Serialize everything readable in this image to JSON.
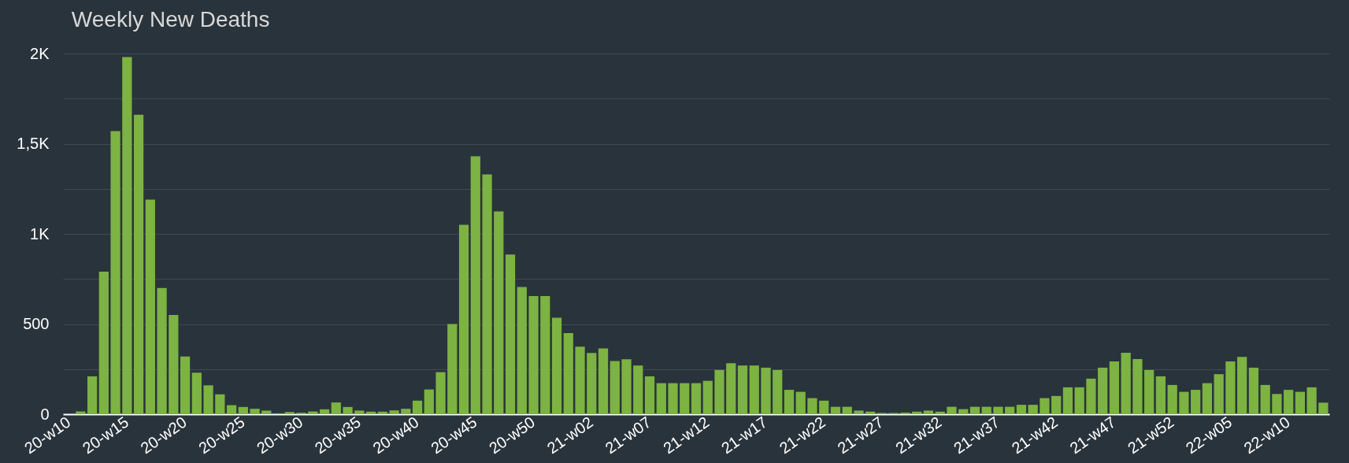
{
  "chart_data": {
    "type": "bar",
    "title": "Weekly New Deaths",
    "categories": [
      "20-w10",
      null,
      null,
      null,
      null,
      "20-w15",
      null,
      null,
      null,
      null,
      "20-w20",
      null,
      null,
      null,
      null,
      "20-w25",
      null,
      null,
      null,
      null,
      "20-w30",
      null,
      null,
      null,
      null,
      "20-w35",
      null,
      null,
      null,
      null,
      "20-w40",
      null,
      null,
      null,
      null,
      "20-w45",
      null,
      null,
      null,
      null,
      "20-w50",
      null,
      null,
      null,
      null,
      "21-w02",
      null,
      null,
      null,
      null,
      "21-w07",
      null,
      null,
      null,
      null,
      "21-w12",
      null,
      null,
      null,
      null,
      "21-w17",
      null,
      null,
      null,
      null,
      "21-w22",
      null,
      null,
      null,
      null,
      "21-w27",
      null,
      null,
      null,
      null,
      "21-w32",
      null,
      null,
      null,
      null,
      "21-w37",
      null,
      null,
      null,
      null,
      "21-w42",
      null,
      null,
      null,
      null,
      "21-w47",
      null,
      null,
      null,
      null,
      "21-w52",
      null,
      null,
      null,
      null,
      "22-w05",
      null,
      null,
      null,
      null,
      "22-w10",
      null,
      null,
      null
    ],
    "values": [
      0,
      15,
      210,
      790,
      1570,
      1980,
      1660,
      1190,
      700,
      550,
      320,
      230,
      160,
      110,
      50,
      40,
      30,
      20,
      5,
      12,
      8,
      15,
      27,
      65,
      40,
      20,
      14,
      14,
      21,
      30,
      75,
      137,
      233,
      500,
      1050,
      1430,
      1330,
      1125,
      885,
      705,
      655,
      655,
      535,
      450,
      375,
      340,
      365,
      295,
      305,
      270,
      210,
      172,
      172,
      172,
      172,
      185,
      245,
      283,
      270,
      270,
      258,
      245,
      135,
      124,
      89,
      75,
      41,
      41,
      20,
      14,
      7,
      7,
      9,
      14,
      20,
      14,
      41,
      28,
      41,
      41,
      41,
      41,
      52,
      52,
      89,
      101,
      149,
      149,
      197,
      258,
      293,
      341,
      306,
      245,
      210,
      162,
      124,
      135,
      172,
      222,
      293,
      318,
      258,
      162,
      112,
      135,
      124,
      149,
      64
    ],
    "color": "#7cb342",
    "ylim": [
      0,
      2000
    ],
    "yticks": [
      0,
      {
        "value": 250,
        "label": null
      },
      500,
      {
        "value": 750,
        "label": null
      },
      {
        "value": 1000,
        "label": "1K"
      },
      {
        "value": 1250,
        "label": null
      },
      {
        "value": 1500,
        "label": "1,5K"
      },
      {
        "value": 1750,
        "label": null
      },
      {
        "value": 2000,
        "label": "2K"
      }
    ],
    "grid": "y"
  }
}
